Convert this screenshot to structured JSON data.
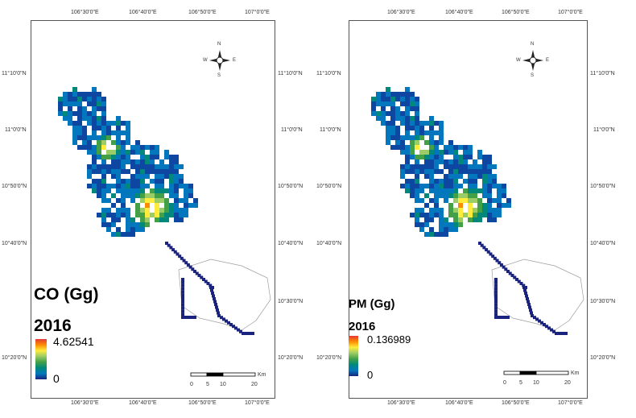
{
  "maps": [
    {
      "pollutant_label": "CO (Gg)",
      "year": "2016",
      "legend_max": "4.62541",
      "legend_min": "0",
      "lon_ticks": [
        "106°30'0\"E",
        "106°40'0\"E",
        "106°50'0\"E",
        "107°0'0\"E"
      ],
      "lat_ticks": [
        "11°10'0\"N",
        "11°0'0\"N",
        "10°50'0\"N",
        "10°40'0\"N",
        "10°30'0\"N",
        "10°20'0\"N"
      ],
      "scale_labels": [
        "0",
        "5",
        "10",
        "20"
      ],
      "scale_unit": "Km",
      "north_labels": [
        "N",
        "E",
        "S",
        "W"
      ]
    },
    {
      "pollutant_label": "PM (Gg)",
      "year": "2016",
      "legend_max": "0.136989",
      "legend_min": "0",
      "lon_ticks": [
        "106°30'0\"E",
        "106°40'0\"E",
        "106°50'0\"E",
        "107°0'0\"E"
      ],
      "lat_ticks": [
        "11°10'0\"N",
        "11°0'0\"N",
        "10°50'0\"N",
        "10°40'0\"N",
        "10°30'0\"N",
        "10°20'0\"N"
      ],
      "scale_labels": [
        "0",
        "5",
        "10",
        "20"
      ],
      "scale_unit": "Km",
      "north_labels": [
        "N",
        "E",
        "S",
        "W"
      ]
    }
  ],
  "colors": {
    "ramp": [
      "#1a237e",
      "#0d47a1",
      "#0277bd",
      "#00897b",
      "#43a047",
      "#9ccc65",
      "#ffeb3b",
      "#fb8c00",
      "#e53935"
    ],
    "outline": "#9e9e9e"
  }
}
